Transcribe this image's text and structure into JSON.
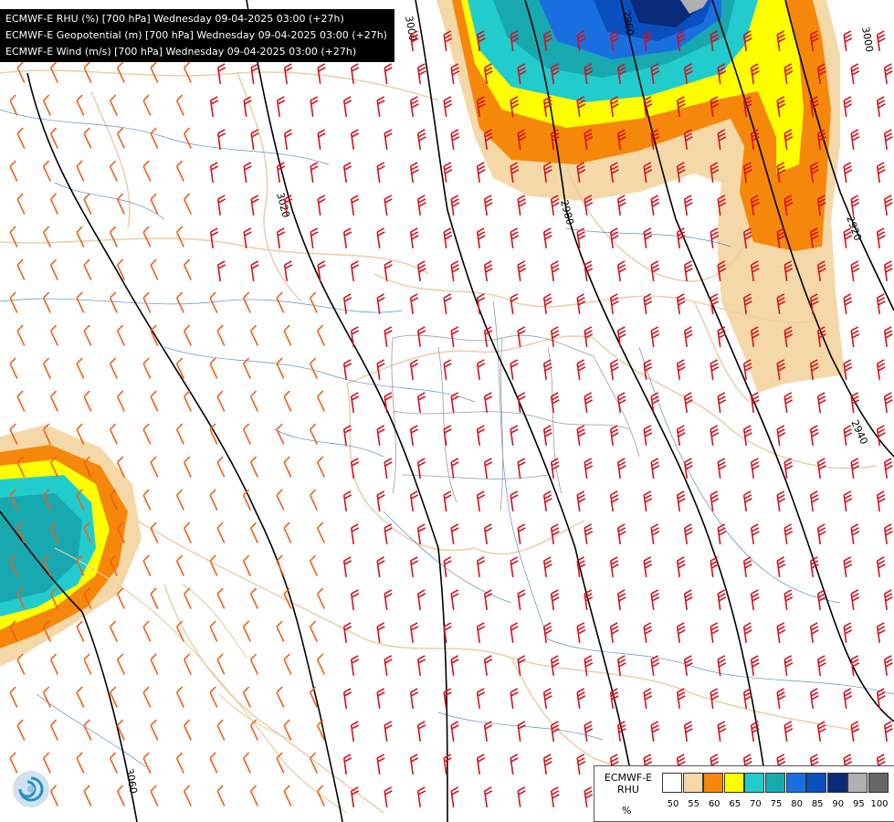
{
  "header": {
    "lines": [
      "ECMWF-E RHU (%) [700 hPa] Wednesday 09-04-2025 03:00 (+27h)",
      "ECMWF-E Geopotential (m) [700 hPa] Wednesday 09-04-2025 03:00 (+27h)",
      "ECMWF-E Wind (m/s) [700 hPa] Wednesday 09-04-2025 03:00 (+27h)"
    ]
  },
  "contours": {
    "labels": [
      "3000",
      "2960",
      "3020",
      "2980",
      "2920",
      "2940",
      "3060",
      "3000"
    ]
  },
  "legend": {
    "title_line1": "ECMWF-E",
    "title_line2": "RHU",
    "unit": "%",
    "ticks": [
      "50",
      "55",
      "60",
      "65",
      "70",
      "75",
      "80",
      "85",
      "90",
      "95",
      "100"
    ],
    "colors": [
      "#ffffff",
      "#f5d8a8",
      "#f5870a",
      "#ffff00",
      "#22cccc",
      "#18a8b0",
      "#1a6fe0",
      "#0a4fbf",
      "#0a2a7a",
      "#b0b0b0",
      "#666666"
    ]
  },
  "wind_colors": {
    "weak": "#f06018",
    "strong": "#d4101e"
  },
  "logo": {
    "name": "logo-icon"
  }
}
